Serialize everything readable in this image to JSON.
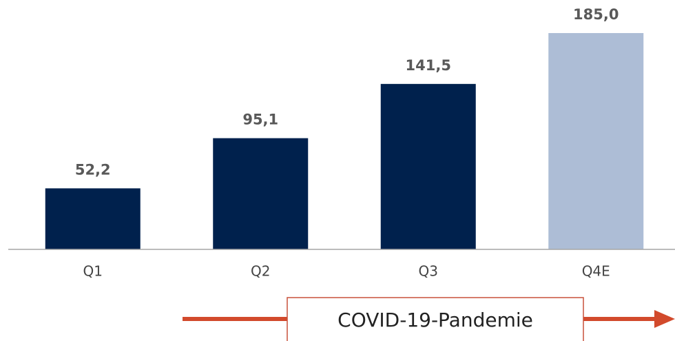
{
  "chart_data": {
    "type": "bar",
    "categories": [
      "Q1",
      "Q2",
      "Q3",
      "Q4E"
    ],
    "values": [
      52.2,
      95.1,
      141.5,
      185.0
    ],
    "value_labels": [
      "52,2",
      "95,1",
      "141,5",
      "185,0"
    ],
    "colors": [
      "#00214d",
      "#00214d",
      "#00214d",
      "#adbdd6"
    ],
    "annotations": [
      "COVID-19-Pandemie"
    ]
  }
}
